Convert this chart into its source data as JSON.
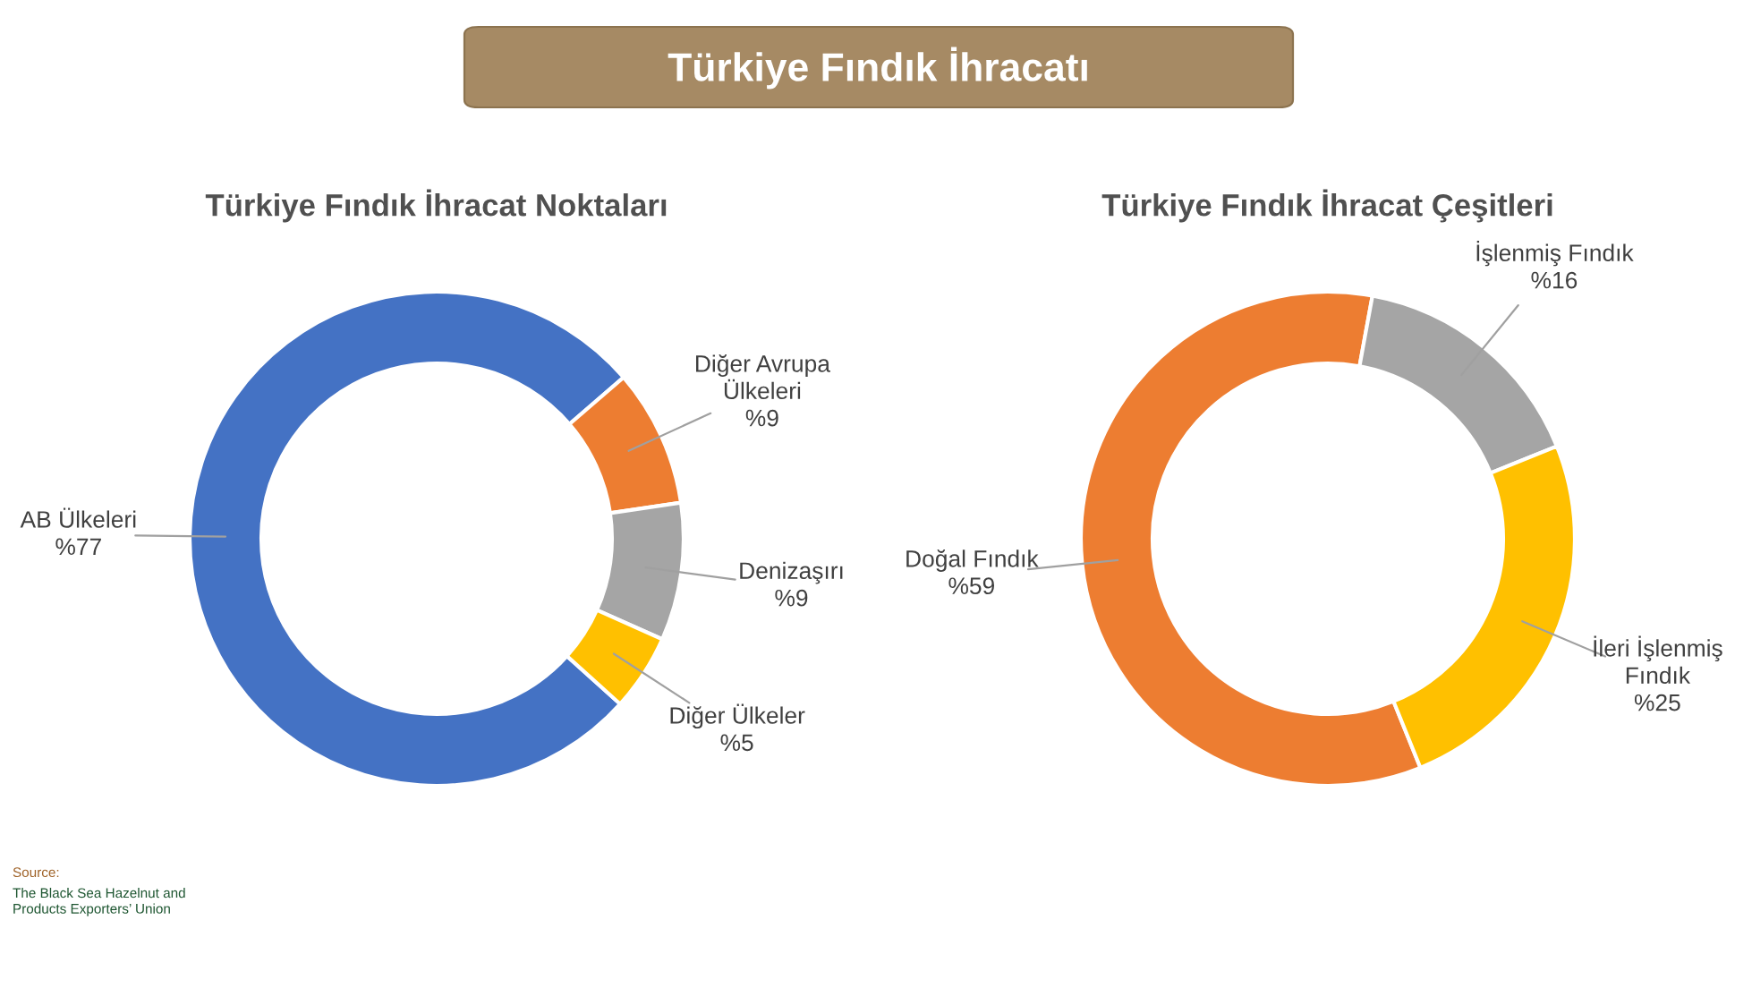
{
  "chart_data": [
    {
      "type": "donut",
      "title": "Türkiye Fındık İhracatı",
      "subtitle": "Türkiye Fındık İhracat Noktaları",
      "categories": [
        "AB Ülkeleri",
        "Diğer Avrupa\nÜlkeleri",
        "Denizaşırı",
        "Diğer Ülkeler"
      ],
      "values": [
        77,
        9,
        9,
        5
      ],
      "value_labels": [
        "%77",
        "%9",
        "%9",
        "%5"
      ],
      "colors": [
        "#4472c4",
        "#ed7d31",
        "#a5a5a5",
        "#ffc000"
      ],
      "annotations": [
        "Source:",
        "The Black Sea Hazelnut and\nProducts Exporters’ Union"
      ]
    },
    {
      "type": "donut",
      "subtitle": "Türkiye Fındık İhracat Çeşitleri",
      "categories": [
        "Doğal Fındık",
        "İşlenmiş Fındık",
        "İleri İşlenmiş\nFındık"
      ],
      "values": [
        59,
        16,
        25
      ],
      "value_labels": [
        "%59",
        "%16",
        "%25"
      ],
      "colors": [
        "#ed7d31",
        "#a5a5a5",
        "#ffc000"
      ]
    }
  ]
}
